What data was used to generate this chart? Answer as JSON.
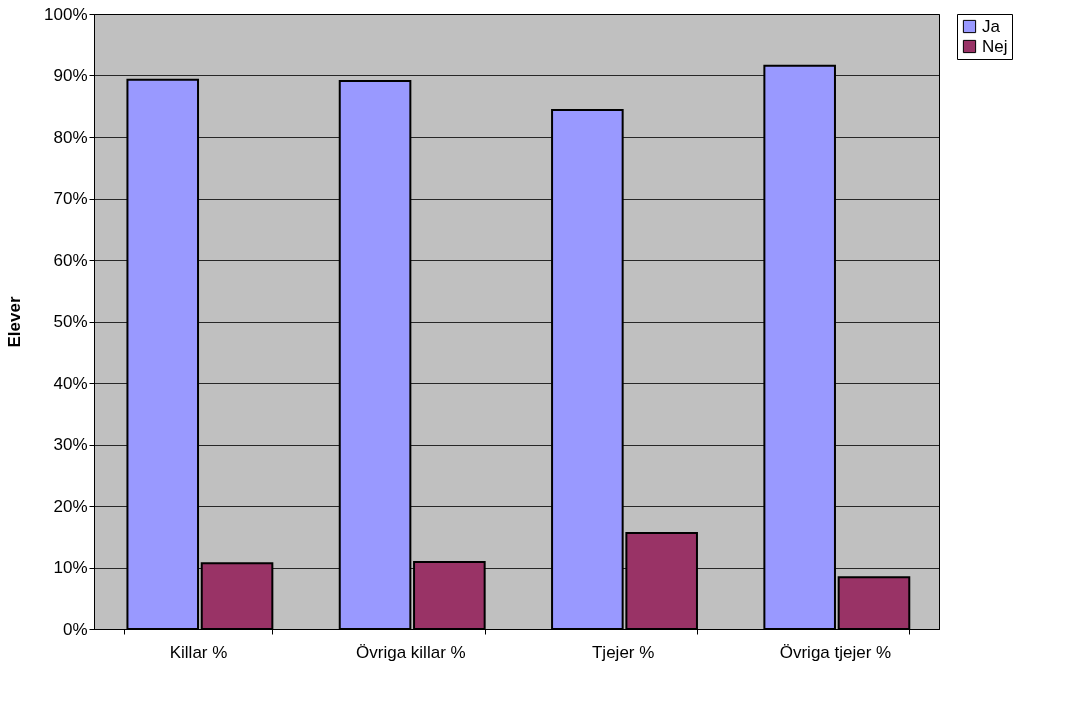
{
  "chart_data": {
    "type": "bar",
    "ylabel": "Elever",
    "categories": [
      "Killar %",
      "Övriga killar %",
      "Tjejer %",
      "Övriga tjejer %"
    ],
    "series": [
      {
        "name": "Ja",
        "color": "#9999ff",
        "values": [
          89.3,
          89.1,
          84.4,
          91.6
        ]
      },
      {
        "name": "Nej",
        "color": "#993366",
        "values": [
          10.7,
          10.9,
          15.6,
          8.4
        ]
      }
    ],
    "ylim": [
      0,
      100
    ],
    "yticks": [
      {
        "value": 0,
        "label": "0%"
      },
      {
        "value": 10,
        "label": "10%"
      },
      {
        "value": 20,
        "label": "20%"
      },
      {
        "value": 30,
        "label": "30%"
      },
      {
        "value": 40,
        "label": "40%"
      },
      {
        "value": 50,
        "label": "50%"
      },
      {
        "value": 60,
        "label": "60%"
      },
      {
        "value": 70,
        "label": "70%"
      },
      {
        "value": 80,
        "label": "80%"
      },
      {
        "value": 90,
        "label": "90%"
      },
      {
        "value": 100,
        "label": "100%"
      }
    ],
    "grid": "y",
    "legend": "right"
  }
}
